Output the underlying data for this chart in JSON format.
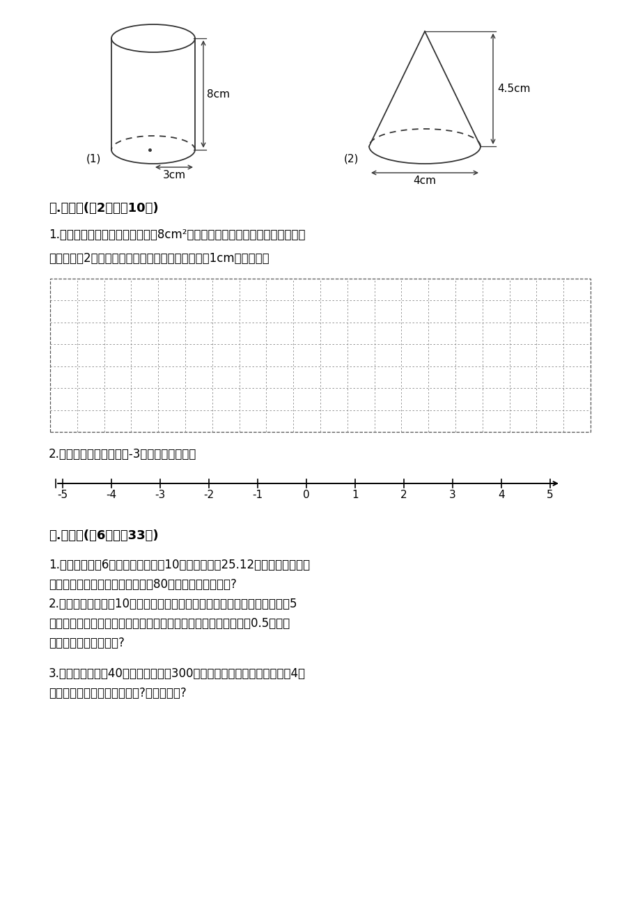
{
  "bg_color": "#ffffff",
  "section5_title": "五.作图题(共2题，共10分)",
  "q1_text1": "1.在下面的方格纸中画一个面积是8cm²的长方形，再把这个长方形的各边长扩",
  "q1_text2": "大到原来的2倍，画出图形。（每个方格代表边长为1cm的正方形）",
  "q2_text": "2.在下面直线上，画出比-3大的数所在区域。",
  "section6_title": "六.解答题(共6题，共33分)",
  "p1_line1": "1.某建筑物内有6根圆柱形大柱，高10米，大柱周长25.12分米，要全部涂上",
  "p1_line2": "油漆，如果按每平方米的油漆费为80元计算，需用多少钱?",
  "p2_line1": "2.在一个底面半径为10厘米的圆柱形杯里装满水，水里放了一个底面半径为5",
  "p2_line2": "厘米的圆锥形铅锤，当铅锤从水中完全取出后，杯里的水面下降了0.5厘米，",
  "p2_line3": "这个铅锤的体积是多少?",
  "p3_line1": "3.某俱乐部要购买40套运动服，每套300元，甲商场打七五折，乙商场买4套",
  "p3_line2": "赠送一套，去哪个商场买便宜?便宜多少钱?",
  "cylinder_label": "(1)",
  "cylinder_h_label": "8cm",
  "cylinder_r_label": "3cm",
  "cone_label": "(2)",
  "cone_h_label": "4.5cm",
  "cone_r_label": "4cm",
  "number_line_ticks": [
    -5,
    -4,
    -3,
    -2,
    -1,
    0,
    1,
    2,
    3,
    4,
    5
  ],
  "number_line_labels": [
    "-5",
    "-4",
    "-3",
    "-2",
    "-1",
    "0",
    "1",
    "2",
    "3",
    "4",
    "5"
  ]
}
